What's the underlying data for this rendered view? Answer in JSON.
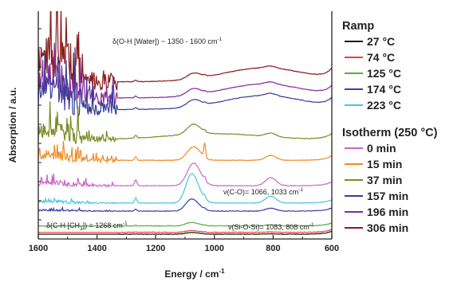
{
  "chart_data": {
    "type": "line",
    "xlabel": "Energy / cm",
    "xlabel_sup": "-1",
    "ylabel": "Absorption / a.u.",
    "xlim": [
      1600,
      600
    ],
    "x_reversed": true,
    "x_ticks": [
      "1600",
      "1400",
      "1200",
      "1000",
      "800",
      "600"
    ],
    "y_ticks_labeled": false,
    "grid": false,
    "legend_placement": "right",
    "legend_groups": [
      {
        "title": "Ramp",
        "items": [
          "27 °C",
          "74 °C",
          "125 °C",
          "174 °C",
          "223 °C"
        ]
      },
      {
        "title": "Isotherm (250 °C)",
        "items": [
          "0 min",
          "15 min",
          "37 min",
          "157 min",
          "196 min",
          "306 min"
        ]
      }
    ],
    "annotations": [
      {
        "text": "δ(O-H [Water]) ~ 1350 - 1600 cm",
        "sup": "-1"
      },
      {
        "text": "ν(C-O)= 1066, 1033 cm",
        "sup": "-1"
      },
      {
        "text": "δ(C-H [CH",
        "sub": "3",
        "text2": "]) = 1268 cm",
        "sup": "-1"
      },
      {
        "text": "ν(Si-O-Si)= 1083, 808 cm",
        "sup": "-1"
      }
    ],
    "series": [
      {
        "name": "27 °C",
        "color": "#1a1a1a",
        "offset": 0.0,
        "scale": 0.05,
        "water": 0.0
      },
      {
        "name": "74 °C",
        "color": "#e8443a",
        "offset": 0.8,
        "scale": 0.05,
        "water": 0.0
      },
      {
        "name": "125 °C",
        "color": "#5aab3c",
        "offset": 3.6,
        "scale": 0.1,
        "water": 0.0
      },
      {
        "name": "174 °C",
        "color": "#3b3ea8",
        "offset": 10.0,
        "scale": 0.35,
        "water": 0.05
      },
      {
        "name": "223 °C",
        "color": "#49c4dc",
        "offset": 13.5,
        "scale": 0.85,
        "water": 0.08
      },
      {
        "name": "0 min",
        "color": "#cc66cc",
        "offset": 21.0,
        "scale": 1.0,
        "water": 0.15
      },
      {
        "name": "15 min",
        "color": "#f08a24",
        "offset": 32.0,
        "scale": 0.6,
        "water": 0.3
      },
      {
        "name": "37 min",
        "color": "#7d8c26",
        "offset": 41.0,
        "scale": 0.45,
        "water": 0.5
      },
      {
        "name": "157 min",
        "color": "#3a3c98",
        "offset": 54.0,
        "scale": 0.3,
        "water": 1.0
      },
      {
        "name": "196 min",
        "color": "#882a9a",
        "offset": 59.0,
        "scale": 0.28,
        "water": 1.1
      },
      {
        "name": "306 min",
        "color": "#8a1c1c",
        "offset": 66.0,
        "scale": 0.25,
        "water": 1.3
      }
    ]
  }
}
